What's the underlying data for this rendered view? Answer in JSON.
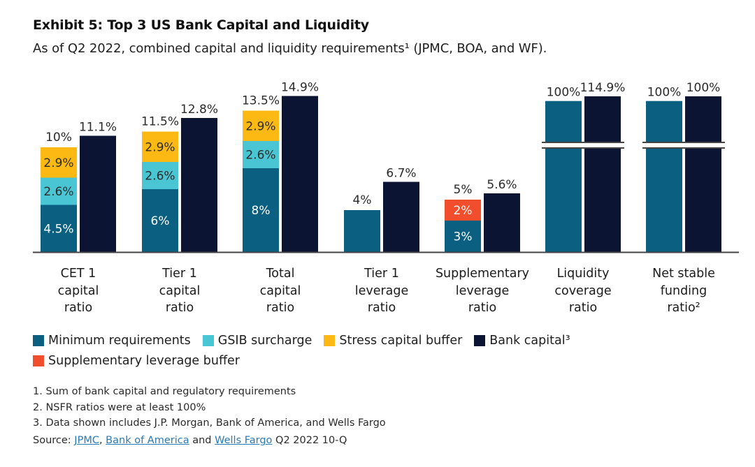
{
  "header": {
    "title": "Exhibit 5: Top 3 US Bank Capital and Liquidity",
    "subtitle": "As of Q2 2022, combined capital and liquidity requirements¹ (JPMC, BOA, and WF)."
  },
  "colors": {
    "minimum": "#0b6082",
    "gsib": "#4ac5d4",
    "stress": "#fdb913",
    "bank_capital": "#0b1533",
    "slb": "#f04e2c",
    "axis": "#444444",
    "label_dark": "#2a2a2a",
    "label_light": "#ffffff"
  },
  "chart_data": {
    "type": "bar",
    "title": "Exhibit 5: Top 3 US Bank Capital and Liquidity",
    "xlabel": "",
    "ylabel": "",
    "axis_break": [
      "Liquidity coverage ratio",
      "Net stable funding ratio²"
    ],
    "categories": [
      [
        "CET 1",
        "capital",
        "ratio"
      ],
      [
        "Tier 1",
        "capital",
        "ratio"
      ],
      [
        "Total",
        "capital",
        "ratio"
      ],
      [
        "Tier 1",
        "leverage",
        "ratio"
      ],
      [
        "Supplementary",
        "leverage",
        "ratio"
      ],
      [
        "Liquidity",
        "coverage",
        "ratio"
      ],
      [
        "Net stable",
        "funding",
        "ratio²"
      ]
    ],
    "requirements": [
      {
        "total_label": "10%",
        "segments": [
          {
            "series": "minimum",
            "value": 4.5,
            "label": "4.5%"
          },
          {
            "series": "gsib",
            "value": 2.6,
            "label": "2.6%"
          },
          {
            "series": "stress",
            "value": 2.9,
            "label": "2.9%"
          }
        ]
      },
      {
        "total_label": "11.5%",
        "segments": [
          {
            "series": "minimum",
            "value": 6,
            "label": "6%"
          },
          {
            "series": "gsib",
            "value": 2.6,
            "label": "2.6%"
          },
          {
            "series": "stress",
            "value": 2.9,
            "label": "2.9%"
          }
        ]
      },
      {
        "total_label": "13.5%",
        "segments": [
          {
            "series": "minimum",
            "value": 8,
            "label": "8%"
          },
          {
            "series": "gsib",
            "value": 2.6,
            "label": "2.6%"
          },
          {
            "series": "stress",
            "value": 2.9,
            "label": "2.9%"
          }
        ]
      },
      {
        "total_label": "4%",
        "segments": [
          {
            "series": "minimum",
            "value": 4,
            "label": ""
          }
        ]
      },
      {
        "total_label": "5%",
        "segments": [
          {
            "series": "minimum",
            "value": 3,
            "label": "3%"
          },
          {
            "series": "slb",
            "value": 2,
            "label": "2%"
          }
        ]
      },
      {
        "total_label": "100%",
        "segments": [
          {
            "series": "minimum",
            "value": 100,
            "label": ""
          }
        ]
      },
      {
        "total_label": "100%",
        "segments": [
          {
            "series": "minimum",
            "value": 100,
            "label": ""
          }
        ]
      }
    ],
    "bank_capital": [
      {
        "value": 11.1,
        "label": "11.1%"
      },
      {
        "value": 12.8,
        "label": "12.8%"
      },
      {
        "value": 14.9,
        "label": "14.9%"
      },
      {
        "value": 6.7,
        "label": "6.7%"
      },
      {
        "value": 5.6,
        "label": "5.6%"
      },
      {
        "value": 114.9,
        "label": "114.9%"
      },
      {
        "value": 100,
        "label": "100%"
      }
    ],
    "series": [
      {
        "key": "minimum",
        "name": "Minimum requirements"
      },
      {
        "key": "gsib",
        "name": "GSIB surcharge"
      },
      {
        "key": "stress",
        "name": "Stress capital buffer"
      },
      {
        "key": "bank_capital",
        "name": "Bank capital³"
      },
      {
        "key": "slb",
        "name": "Supplementary leverage buffer"
      }
    ],
    "legend_position": "bottom-left",
    "grid": false
  },
  "legend": {
    "row1": [
      {
        "key": "minimum",
        "label": "Minimum requirements"
      },
      {
        "key": "gsib",
        "label": "GSIB surcharge"
      },
      {
        "key": "stress",
        "label": "Stress capital buffer"
      },
      {
        "key": "bank_capital",
        "label": "Bank capital³"
      }
    ],
    "row2": [
      {
        "key": "slb",
        "label": "Supplementary leverage buffer"
      }
    ]
  },
  "notes": [
    "1. Sum of bank capital and regulatory requirements",
    "2. NSFR ratios were at least 100%",
    "3. Data shown includes J.P. Morgan, Bank of America, and Wells Fargo"
  ],
  "source": {
    "prefix": "Source: ",
    "link1": "JPMC",
    "sep1": ", ",
    "link2": "Bank of America",
    "sep2": " and ",
    "link3": "Wells Fargo",
    "suffix": " Q2 2022 10-Q"
  }
}
